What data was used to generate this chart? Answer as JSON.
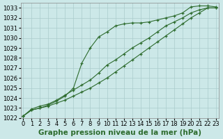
{
  "xlabel": "Graphe pression niveau de la mer (hPa)",
  "ylabel": "",
  "bg_color": "#cce8e8",
  "grid_color": "#aacccc",
  "line_color": "#2d6b2d",
  "marker": "+",
  "x": [
    0,
    1,
    2,
    3,
    4,
    5,
    6,
    7,
    8,
    9,
    10,
    11,
    12,
    13,
    14,
    15,
    16,
    17,
    18,
    19,
    20,
    21,
    22,
    23
  ],
  "line1": [
    1022.2,
    1022.8,
    1023.0,
    1023.3,
    1023.7,
    1024.2,
    1025.0,
    1027.5,
    1029.0,
    1030.1,
    1030.6,
    1031.2,
    1031.4,
    1031.5,
    1031.5,
    1031.6,
    1031.8,
    1032.0,
    1032.2,
    1032.5,
    1033.1,
    1033.2,
    1033.2,
    1033.1
  ],
  "line2": [
    1022.2,
    1022.8,
    1023.0,
    1023.2,
    1023.5,
    1023.8,
    1024.2,
    1024.6,
    1025.0,
    1025.5,
    1026.0,
    1026.6,
    1027.2,
    1027.8,
    1028.4,
    1029.0,
    1029.6,
    1030.2,
    1030.8,
    1031.4,
    1032.0,
    1032.5,
    1033.0,
    1033.0
  ],
  "line3": [
    1022.2,
    1022.9,
    1023.2,
    1023.4,
    1023.8,
    1024.3,
    1024.8,
    1025.3,
    1025.8,
    1026.5,
    1027.3,
    1027.8,
    1028.4,
    1029.0,
    1029.5,
    1030.0,
    1030.6,
    1031.2,
    1031.6,
    1032.0,
    1032.5,
    1032.8,
    1033.0,
    1033.0
  ],
  "ylim": [
    1022,
    1033.5
  ],
  "xlim": [
    -0.3,
    23.3
  ],
  "yticks": [
    1022,
    1023,
    1024,
    1025,
    1026,
    1027,
    1028,
    1029,
    1030,
    1031,
    1032,
    1033
  ],
  "xticks": [
    0,
    1,
    2,
    3,
    4,
    5,
    6,
    7,
    8,
    9,
    10,
    11,
    12,
    13,
    14,
    15,
    16,
    17,
    18,
    19,
    20,
    21,
    22,
    23
  ],
  "xlabel_fontsize": 7.5,
  "tick_fontsize": 6.0
}
